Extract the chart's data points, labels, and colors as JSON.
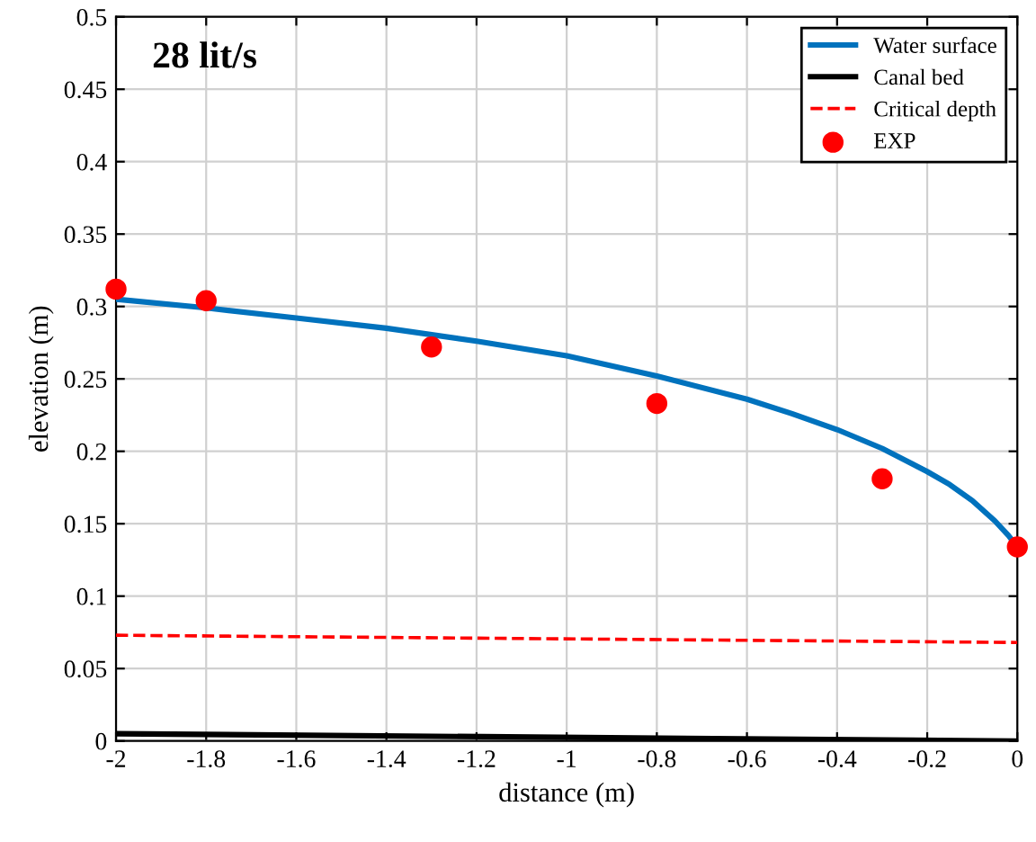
{
  "chart_data": {
    "type": "line",
    "xlabel": "distance (m)",
    "ylabel": "elevation (m)",
    "annotations": [
      "28 lit/s"
    ],
    "xlim": [
      -2,
      0
    ],
    "xticks": [
      -2,
      -1.8,
      -1.6,
      -1.4,
      -1.2,
      -1,
      -0.8,
      -0.6,
      -0.4,
      -0.2,
      0
    ],
    "ylim": [
      0,
      0.5
    ],
    "yticks": [
      0,
      0.05,
      0.1,
      0.15,
      0.2,
      0.25,
      0.3,
      0.35,
      0.4,
      0.45,
      0.5
    ],
    "grid": true,
    "legend": "top right",
    "series": [
      {
        "name": "Water surface",
        "color": "#0072bd",
        "line_style": "solid",
        "x": [
          -2,
          -1.8,
          -1.6,
          -1.4,
          -1.2,
          -1.0,
          -0.8,
          -0.6,
          -0.5,
          -0.4,
          -0.3,
          -0.2,
          -0.15,
          -0.1,
          -0.05,
          -0.02,
          0
        ],
        "values": [
          0.305,
          0.299,
          0.292,
          0.285,
          0.276,
          0.266,
          0.252,
          0.236,
          0.226,
          0.215,
          0.202,
          0.186,
          0.177,
          0.166,
          0.152,
          0.142,
          0.134
        ]
      },
      {
        "name": "Canal bed",
        "color": "#000000",
        "line_style": "solid",
        "x": [
          -2,
          0
        ],
        "values": [
          0.005,
          0.0
        ]
      },
      {
        "name": "Critical depth",
        "color": "#ff0000",
        "line_style": "dashed",
        "x": [
          -2,
          0
        ],
        "values": [
          0.073,
          0.068
        ]
      },
      {
        "name": "EXP",
        "type": "scatter",
        "color": "#ff0000",
        "marker": "circle",
        "x": [
          -2,
          -1.8,
          -1.3,
          -0.8,
          -0.3,
          0
        ],
        "values": [
          0.312,
          0.304,
          0.272,
          0.233,
          0.181,
          0.134
        ]
      }
    ]
  }
}
